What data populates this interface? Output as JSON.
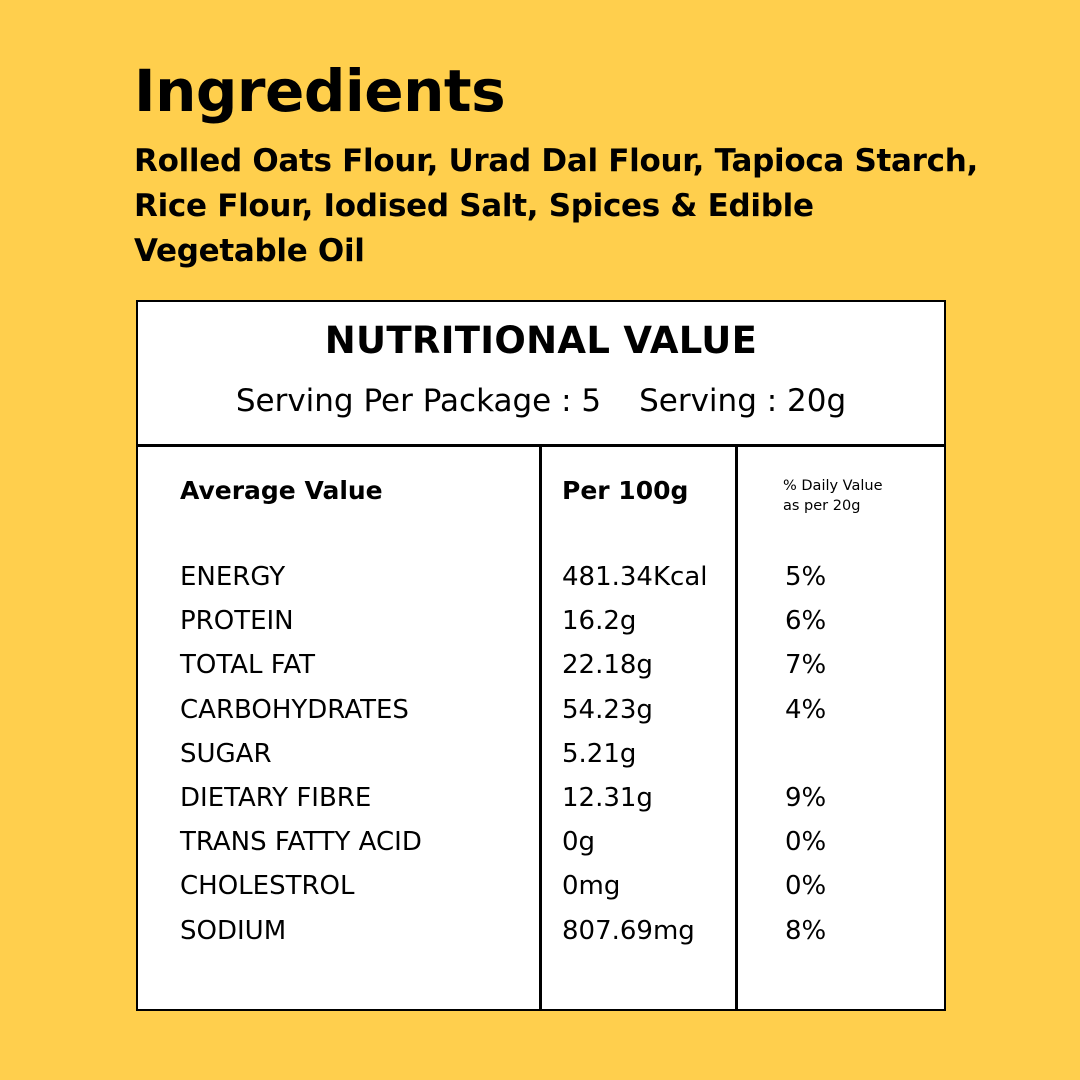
{
  "ingredients": {
    "title": "Ingredients",
    "text": "Rolled Oats Flour, Urad Dal Flour, Tapioca Starch, Rice Flour, Iodised Salt, Spices & Edible Vegetable Oil"
  },
  "nutrition": {
    "title": "NUTRITIONAL VALUE",
    "serving_per_package": "Serving Per Package : 5",
    "serving": "Serving : 20g",
    "headers": {
      "average": "Average Value",
      "per100": "Per 100g",
      "daily_line1": "% Daily Value",
      "daily_line2": "as per 20g"
    },
    "rows": [
      {
        "name": "ENERGY",
        "value": "481.34Kcal",
        "daily": "5%"
      },
      {
        "name": "PROTEIN",
        "value": "16.2g",
        "daily": "6%"
      },
      {
        "name": "TOTAL FAT",
        "value": "22.18g",
        "daily": "7%"
      },
      {
        "name": "CARBOHYDRATES",
        "value": "54.23g",
        "daily": "4%"
      },
      {
        "name": "SUGAR",
        "value": "5.21g",
        "daily": ""
      },
      {
        "name": "DIETARY FIBRE",
        "value": "12.31g",
        "daily": "9%"
      },
      {
        "name": "TRANS FATTY ACID",
        "value": "0g",
        "daily": "0%"
      },
      {
        "name": "CHOLESTROL",
        "value": "0mg",
        "daily": "0%"
      },
      {
        "name": "SODIUM",
        "value": "807.69mg",
        "daily": "8%"
      }
    ]
  },
  "colors": {
    "background": "#FFCF4D",
    "table_background": "#FFFFFF",
    "text": "#000000"
  }
}
